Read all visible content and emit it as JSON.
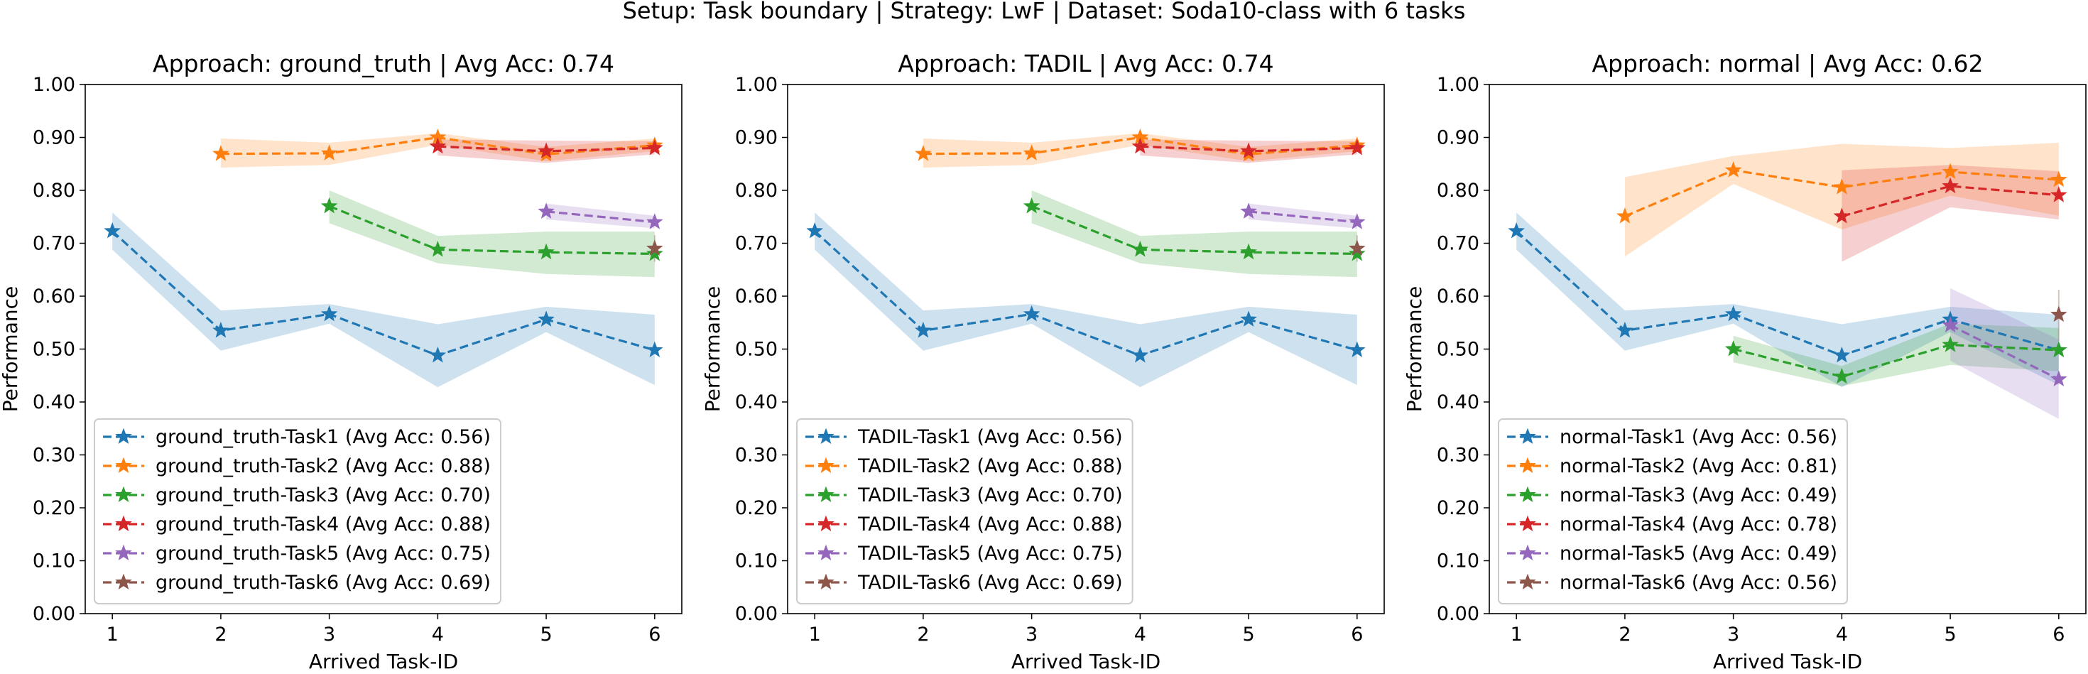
{
  "figure": {
    "suptitle": "Setup: Task boundary | Strategy: LwF | Dataset: Soda10-class with 6 tasks"
  },
  "colors": [
    "#1f77b4",
    "#ff7f0e",
    "#2ca02c",
    "#d62728",
    "#9467bd",
    "#8c564b"
  ],
  "chart_data": [
    {
      "type": "line",
      "title": "Approach: ground_truth | Avg Acc: 0.74",
      "xlabel": "Arrived Task-ID",
      "ylabel": "Performance",
      "xlim": [
        0.75,
        6.25
      ],
      "ylim": [
        0.0,
        1.0
      ],
      "xticks": [
        "1",
        "2",
        "3",
        "4",
        "5",
        "6"
      ],
      "yticks": [
        "0.00",
        "0.10",
        "0.20",
        "0.30",
        "0.40",
        "0.50",
        "0.60",
        "0.70",
        "0.80",
        "0.90",
        "1.00"
      ],
      "grid": false,
      "legend": "lower-left",
      "series": [
        {
          "name": "ground_truth-Task1 (Avg Acc: 0.56)",
          "x": [
            1,
            2,
            3,
            4,
            5,
            6
          ],
          "y": [
            0.723,
            0.535,
            0.566,
            0.488,
            0.556,
            0.498
          ],
          "lower": [
            0.688,
            0.497,
            0.548,
            0.428,
            0.532,
            0.432
          ],
          "upper": [
            0.758,
            0.573,
            0.585,
            0.547,
            0.58,
            0.565
          ]
        },
        {
          "name": "ground_truth-Task2 (Avg Acc: 0.88)",
          "x": [
            2,
            3,
            4,
            5,
            6
          ],
          "y": [
            0.869,
            0.87,
            0.9,
            0.868,
            0.885
          ],
          "lower": [
            0.843,
            0.848,
            0.886,
            0.855,
            0.874
          ],
          "upper": [
            0.898,
            0.89,
            0.908,
            0.882,
            0.898
          ]
        },
        {
          "name": "ground_truth-Task3 (Avg Acc: 0.70)",
          "x": [
            3,
            4,
            5,
            6
          ],
          "y": [
            0.77,
            0.688,
            0.683,
            0.68
          ],
          "lower": [
            0.738,
            0.662,
            0.642,
            0.636
          ],
          "upper": [
            0.8,
            0.714,
            0.722,
            0.722
          ]
        },
        {
          "name": "ground_truth-Task4 (Avg Acc: 0.88)",
          "x": [
            4,
            5,
            6
          ],
          "y": [
            0.883,
            0.874,
            0.88
          ],
          "lower": [
            0.866,
            0.852,
            0.868
          ],
          "upper": [
            0.896,
            0.894,
            0.893
          ]
        },
        {
          "name": "ground_truth-Task5 (Avg Acc: 0.75)",
          "x": [
            5,
            6
          ],
          "y": [
            0.76,
            0.74
          ],
          "lower": [
            0.745,
            0.728
          ],
          "upper": [
            0.775,
            0.752
          ]
        },
        {
          "name": "ground_truth-Task6 (Avg Acc: 0.69)",
          "x": [
            6
          ],
          "y": [
            0.69
          ],
          "lower": [
            0.665
          ],
          "upper": [
            0.715
          ]
        }
      ]
    },
    {
      "type": "line",
      "title": "Approach: TADIL | Avg Acc: 0.74",
      "xlabel": "Arrived Task-ID",
      "ylabel": "Performance",
      "xlim": [
        0.75,
        6.25
      ],
      "ylim": [
        0.0,
        1.0
      ],
      "xticks": [
        "1",
        "2",
        "3",
        "4",
        "5",
        "6"
      ],
      "yticks": [
        "0.00",
        "0.10",
        "0.20",
        "0.30",
        "0.40",
        "0.50",
        "0.60",
        "0.70",
        "0.80",
        "0.90",
        "1.00"
      ],
      "grid": false,
      "legend": "lower-left",
      "series": [
        {
          "name": "TADIL-Task1 (Avg Acc: 0.56)",
          "x": [
            1,
            2,
            3,
            4,
            5,
            6
          ],
          "y": [
            0.723,
            0.535,
            0.566,
            0.488,
            0.556,
            0.498
          ],
          "lower": [
            0.688,
            0.497,
            0.548,
            0.428,
            0.532,
            0.432
          ],
          "upper": [
            0.758,
            0.573,
            0.585,
            0.547,
            0.58,
            0.565
          ]
        },
        {
          "name": "TADIL-Task2 (Avg Acc: 0.88)",
          "x": [
            2,
            3,
            4,
            5,
            6
          ],
          "y": [
            0.869,
            0.87,
            0.9,
            0.868,
            0.885
          ],
          "lower": [
            0.843,
            0.848,
            0.886,
            0.855,
            0.874
          ],
          "upper": [
            0.898,
            0.89,
            0.908,
            0.882,
            0.898
          ]
        },
        {
          "name": "TADIL-Task3 (Avg Acc: 0.70)",
          "x": [
            3,
            4,
            5,
            6
          ],
          "y": [
            0.77,
            0.688,
            0.683,
            0.68
          ],
          "lower": [
            0.738,
            0.662,
            0.642,
            0.636
          ],
          "upper": [
            0.8,
            0.714,
            0.722,
            0.722
          ]
        },
        {
          "name": "TADIL-Task4 (Avg Acc: 0.88)",
          "x": [
            4,
            5,
            6
          ],
          "y": [
            0.883,
            0.874,
            0.88
          ],
          "lower": [
            0.866,
            0.852,
            0.868
          ],
          "upper": [
            0.896,
            0.894,
            0.893
          ]
        },
        {
          "name": "TADIL-Task5 (Avg Acc: 0.75)",
          "x": [
            5,
            6
          ],
          "y": [
            0.76,
            0.74
          ],
          "lower": [
            0.745,
            0.728
          ],
          "upper": [
            0.775,
            0.752
          ]
        },
        {
          "name": "TADIL-Task6 (Avg Acc: 0.69)",
          "x": [
            6
          ],
          "y": [
            0.69
          ],
          "lower": [
            0.665
          ],
          "upper": [
            0.715
          ]
        }
      ]
    },
    {
      "type": "line",
      "title": "Approach: normal | Avg Acc: 0.62",
      "xlabel": "Arrived Task-ID",
      "ylabel": "Performance",
      "xlim": [
        0.75,
        6.25
      ],
      "ylim": [
        0.0,
        1.0
      ],
      "xticks": [
        "1",
        "2",
        "3",
        "4",
        "5",
        "6"
      ],
      "yticks": [
        "0.00",
        "0.10",
        "0.20",
        "0.30",
        "0.40",
        "0.50",
        "0.60",
        "0.70",
        "0.80",
        "0.90",
        "1.00"
      ],
      "grid": false,
      "legend": "lower-left",
      "series": [
        {
          "name": "normal-Task1 (Avg Acc: 0.56)",
          "x": [
            1,
            2,
            3,
            4,
            5,
            6
          ],
          "y": [
            0.723,
            0.535,
            0.566,
            0.488,
            0.556,
            0.498
          ],
          "lower": [
            0.688,
            0.497,
            0.548,
            0.428,
            0.532,
            0.432
          ],
          "upper": [
            0.758,
            0.573,
            0.585,
            0.547,
            0.58,
            0.565
          ]
        },
        {
          "name": "normal-Task2 (Avg Acc: 0.81)",
          "x": [
            2,
            3,
            4,
            5,
            6
          ],
          "y": [
            0.751,
            0.838,
            0.806,
            0.835,
            0.82
          ],
          "lower": [
            0.675,
            0.812,
            0.726,
            0.79,
            0.752
          ],
          "upper": [
            0.825,
            0.865,
            0.888,
            0.88,
            0.89
          ]
        },
        {
          "name": "normal-Task3 (Avg Acc: 0.49)",
          "x": [
            3,
            4,
            5,
            6
          ],
          "y": [
            0.5,
            0.448,
            0.508,
            0.498
          ],
          "lower": [
            0.475,
            0.43,
            0.47,
            0.458
          ],
          "upper": [
            0.525,
            0.468,
            0.548,
            0.54
          ]
        },
        {
          "name": "normal-Task4 (Avg Acc: 0.78)",
          "x": [
            4,
            5,
            6
          ],
          "y": [
            0.751,
            0.808,
            0.791
          ],
          "lower": [
            0.665,
            0.768,
            0.745
          ],
          "upper": [
            0.838,
            0.848,
            0.836
          ]
        },
        {
          "name": "normal-Task5 (Avg Acc: 0.49)",
          "x": [
            5,
            6
          ],
          "y": [
            0.545,
            0.443
          ],
          "lower": [
            0.478,
            0.368
          ],
          "upper": [
            0.615,
            0.518
          ]
        },
        {
          "name": "normal-Task6 (Avg Acc: 0.56)",
          "x": [
            6
          ],
          "y": [
            0.565
          ],
          "lower": [
            0.515
          ],
          "upper": [
            0.612
          ]
        }
      ]
    }
  ]
}
